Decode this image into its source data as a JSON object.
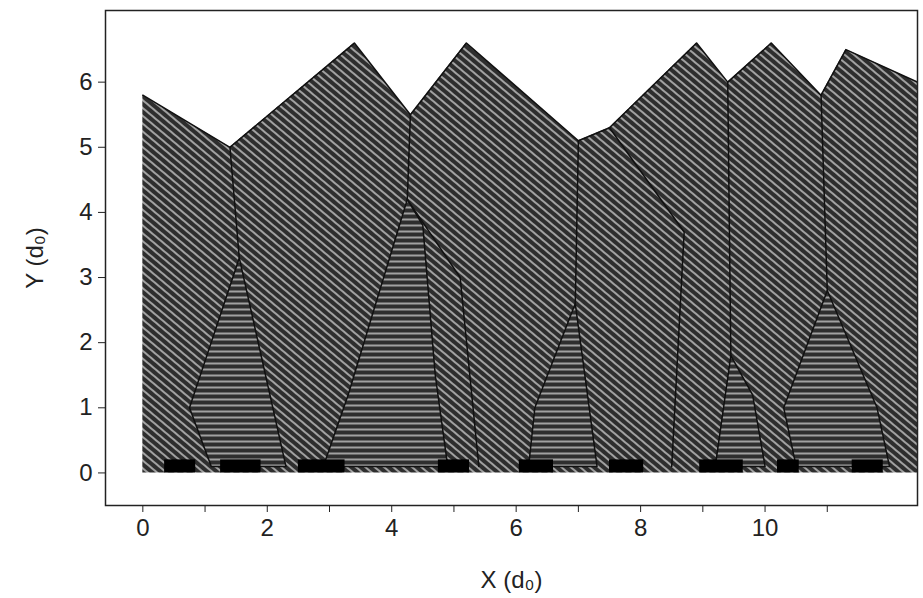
{
  "chart_data": {
    "type": "area",
    "xlabel": "X (d₀)",
    "ylabel": "Y (d₀)",
    "xlim": [
      -0.6,
      12.45
    ],
    "ylim": [
      -0.5,
      7.1
    ],
    "xticks": [
      0,
      2,
      4,
      6,
      8,
      10
    ],
    "xminor_ticks": [
      1,
      3,
      5,
      7,
      9,
      11
    ],
    "yticks": [
      0,
      1,
      2,
      3,
      4,
      5,
      6
    ],
    "color": "#2e2e2e",
    "surface": {
      "x": [
        0,
        1.4,
        3.4,
        4.3,
        5.2,
        7.0,
        7.5,
        8.9,
        9.4,
        10.1,
        10.9,
        11.3,
        12.45
      ],
      "y": [
        5.8,
        5.0,
        6.6,
        5.5,
        6.6,
        5.1,
        5.3,
        6.6,
        6.0,
        6.6,
        5.8,
        6.5,
        6.0
      ]
    },
    "grains": [
      {
        "x": [
          1.1,
          0.75,
          1.55,
          2.3
        ],
        "y": [
          0.1,
          1.0,
          3.3,
          0.1
        ]
      },
      {
        "x": [
          2.9,
          3.3,
          4.25,
          4.5,
          4.7,
          4.9
        ],
        "y": [
          0.1,
          1.2,
          4.2,
          3.8,
          1.5,
          0.1
        ]
      },
      {
        "x": [
          6.2,
          6.3,
          6.95,
          7.3
        ],
        "y": [
          0.1,
          1.0,
          2.6,
          0.1
        ]
      },
      {
        "x": [
          9.2,
          9.45,
          9.8,
          10.0
        ],
        "y": [
          0.1,
          1.8,
          1.2,
          0.1
        ]
      },
      {
        "x": [
          10.5,
          10.3,
          11.0,
          11.8,
          12.0
        ],
        "y": [
          0.1,
          1.0,
          2.8,
          1.0,
          0.1
        ]
      }
    ],
    "boundaries": [
      {
        "x": [
          1.4,
          1.55
        ],
        "y": [
          5.0,
          3.3
        ]
      },
      {
        "x": [
          4.3,
          4.25
        ],
        "y": [
          5.5,
          4.2
        ]
      },
      {
        "x": [
          4.25,
          5.1,
          5.4
        ],
        "y": [
          4.2,
          3.0,
          0.1
        ]
      },
      {
        "x": [
          7.0,
          6.95
        ],
        "y": [
          5.1,
          2.6
        ]
      },
      {
        "x": [
          7.5,
          8.7,
          8.5
        ],
        "y": [
          5.3,
          3.7,
          0.1
        ]
      },
      {
        "x": [
          9.4,
          9.45
        ],
        "y": [
          6.0,
          1.8
        ]
      },
      {
        "x": [
          10.9,
          11.0
        ],
        "y": [
          5.8,
          2.8
        ]
      }
    ],
    "pads": {
      "x1": [
        0.35,
        1.25,
        2.5,
        4.75,
        6.05,
        7.5,
        8.95,
        10.2,
        11.4
      ],
      "x2": [
        0.85,
        1.9,
        3.25,
        5.25,
        6.6,
        8.05,
        9.65,
        10.55,
        11.9
      ],
      "height": [
        0.2,
        0.2,
        0.2,
        0.2,
        0.2,
        0.2,
        0.2,
        0.2,
        0.2
      ]
    }
  }
}
